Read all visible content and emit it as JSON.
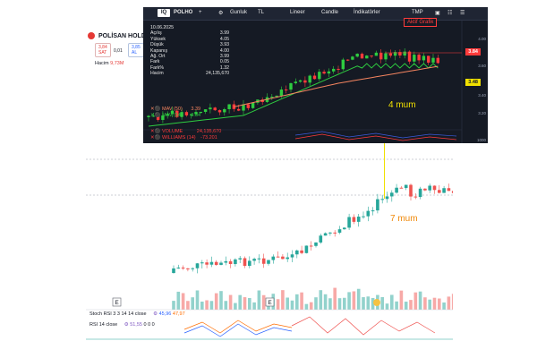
{
  "tv": {
    "symbol": "POLİSAN HOLD",
    "sell_price": "3,84",
    "sell_label": "SAT",
    "spread": "0,01",
    "buy_price": "3,85",
    "buy_label": "AL",
    "volume_label": "Hacim",
    "volume_value": "9,73M",
    "marker_e": "E"
  },
  "iq": {
    "logo": "IQ",
    "symbol": "POLHO",
    "plus": "+",
    "period": "Gunluk",
    "currency": "TL",
    "scale": "Lineer",
    "style": "Candle",
    "indicators": "İndikatörler",
    "tmp": "TMP",
    "aktif_grafik": "Aktif Grafik",
    "info": {
      "date": "10.06.2025",
      "rows": [
        {
          "label": "Açılış",
          "value": "3.99"
        },
        {
          "label": "Yüksek",
          "value": "4.05"
        },
        {
          "label": "Düşük",
          "value": "3.93"
        },
        {
          "label": "Kapanış",
          "value": "4.00"
        },
        {
          "label": "Ağ. Ort",
          "value": "3.99"
        },
        {
          "label": "Fark",
          "value": "0.05"
        },
        {
          "label": "Fark%",
          "value": "1.32"
        },
        {
          "label": "Hacim",
          "value": "24,135,670"
        }
      ]
    },
    "mav50": {
      "label": "MAV (50)",
      "value": "3.39"
    },
    "mav14": {
      "label": "MAV (14)",
      "value": "3.84"
    },
    "volume_row": {
      "label": "VOLUME",
      "value": "24,135,670"
    },
    "williams_row": {
      "label": "WILLIAMS (14)",
      "value": "-73.201"
    },
    "price_tag": "3.84",
    "ma_tag": "3.48",
    "axis": [
      "4.00",
      "3.80",
      "3.60",
      "3.40",
      "3.20",
      "3.00"
    ],
    "axis_bottom": "1000"
  },
  "indicators": {
    "stoch": "Stoch RSI 3 3 14 14 close",
    "stoch_v1": "45,96",
    "stoch_v2": "47,97",
    "rsi": "RSI 14 close",
    "rsi_v1": "51,55",
    "rsi_v2": "0 0 0"
  },
  "annotations": {
    "four": "4 mum",
    "seven": "7 mum"
  },
  "colors": {
    "up": "#26a69a",
    "down": "#ef5350",
    "iq_up": "#2ecc40",
    "iq_down": "#ff3b3b",
    "annotation_yellow": "#f0e000",
    "annotation_orange": "#f0890a"
  }
}
